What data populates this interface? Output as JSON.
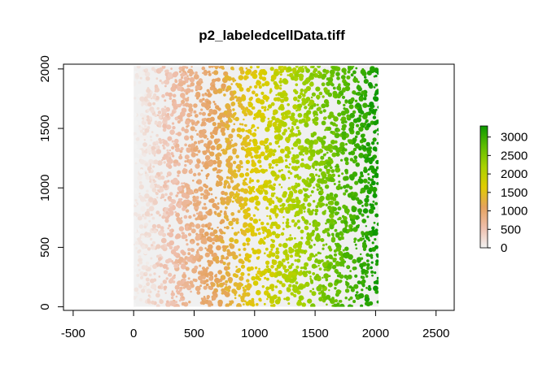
{
  "chart_data": {
    "type": "heatmap",
    "title": "p2_labeledcellData.tiff",
    "xlabel": "",
    "ylabel": "",
    "xlim": [
      -580,
      2650
    ],
    "ylim": [
      -30,
      2040
    ],
    "x_ticks": [
      -500,
      0,
      500,
      1000,
      1500,
      2000,
      2500
    ],
    "y_ticks": [
      0,
      500,
      1000,
      1500,
      2000
    ],
    "raster_extent": {
      "x": [
        0,
        2025
      ],
      "y": [
        0,
        2025
      ]
    },
    "value_trend": "cell label values increase from left (0) to right (~3300)",
    "background_value": 0,
    "colorbar": {
      "range": [
        0,
        3300
      ],
      "ticks": [
        0,
        500,
        1000,
        1500,
        2000,
        2500,
        3000
      ],
      "colors": [
        "#f2f2f2",
        "#eebeab",
        "#e5a25e",
        "#e0cc00",
        "#a8d200",
        "#5fbd00",
        "#0d9800"
      ]
    },
    "grid": false,
    "legend_position": "right"
  }
}
